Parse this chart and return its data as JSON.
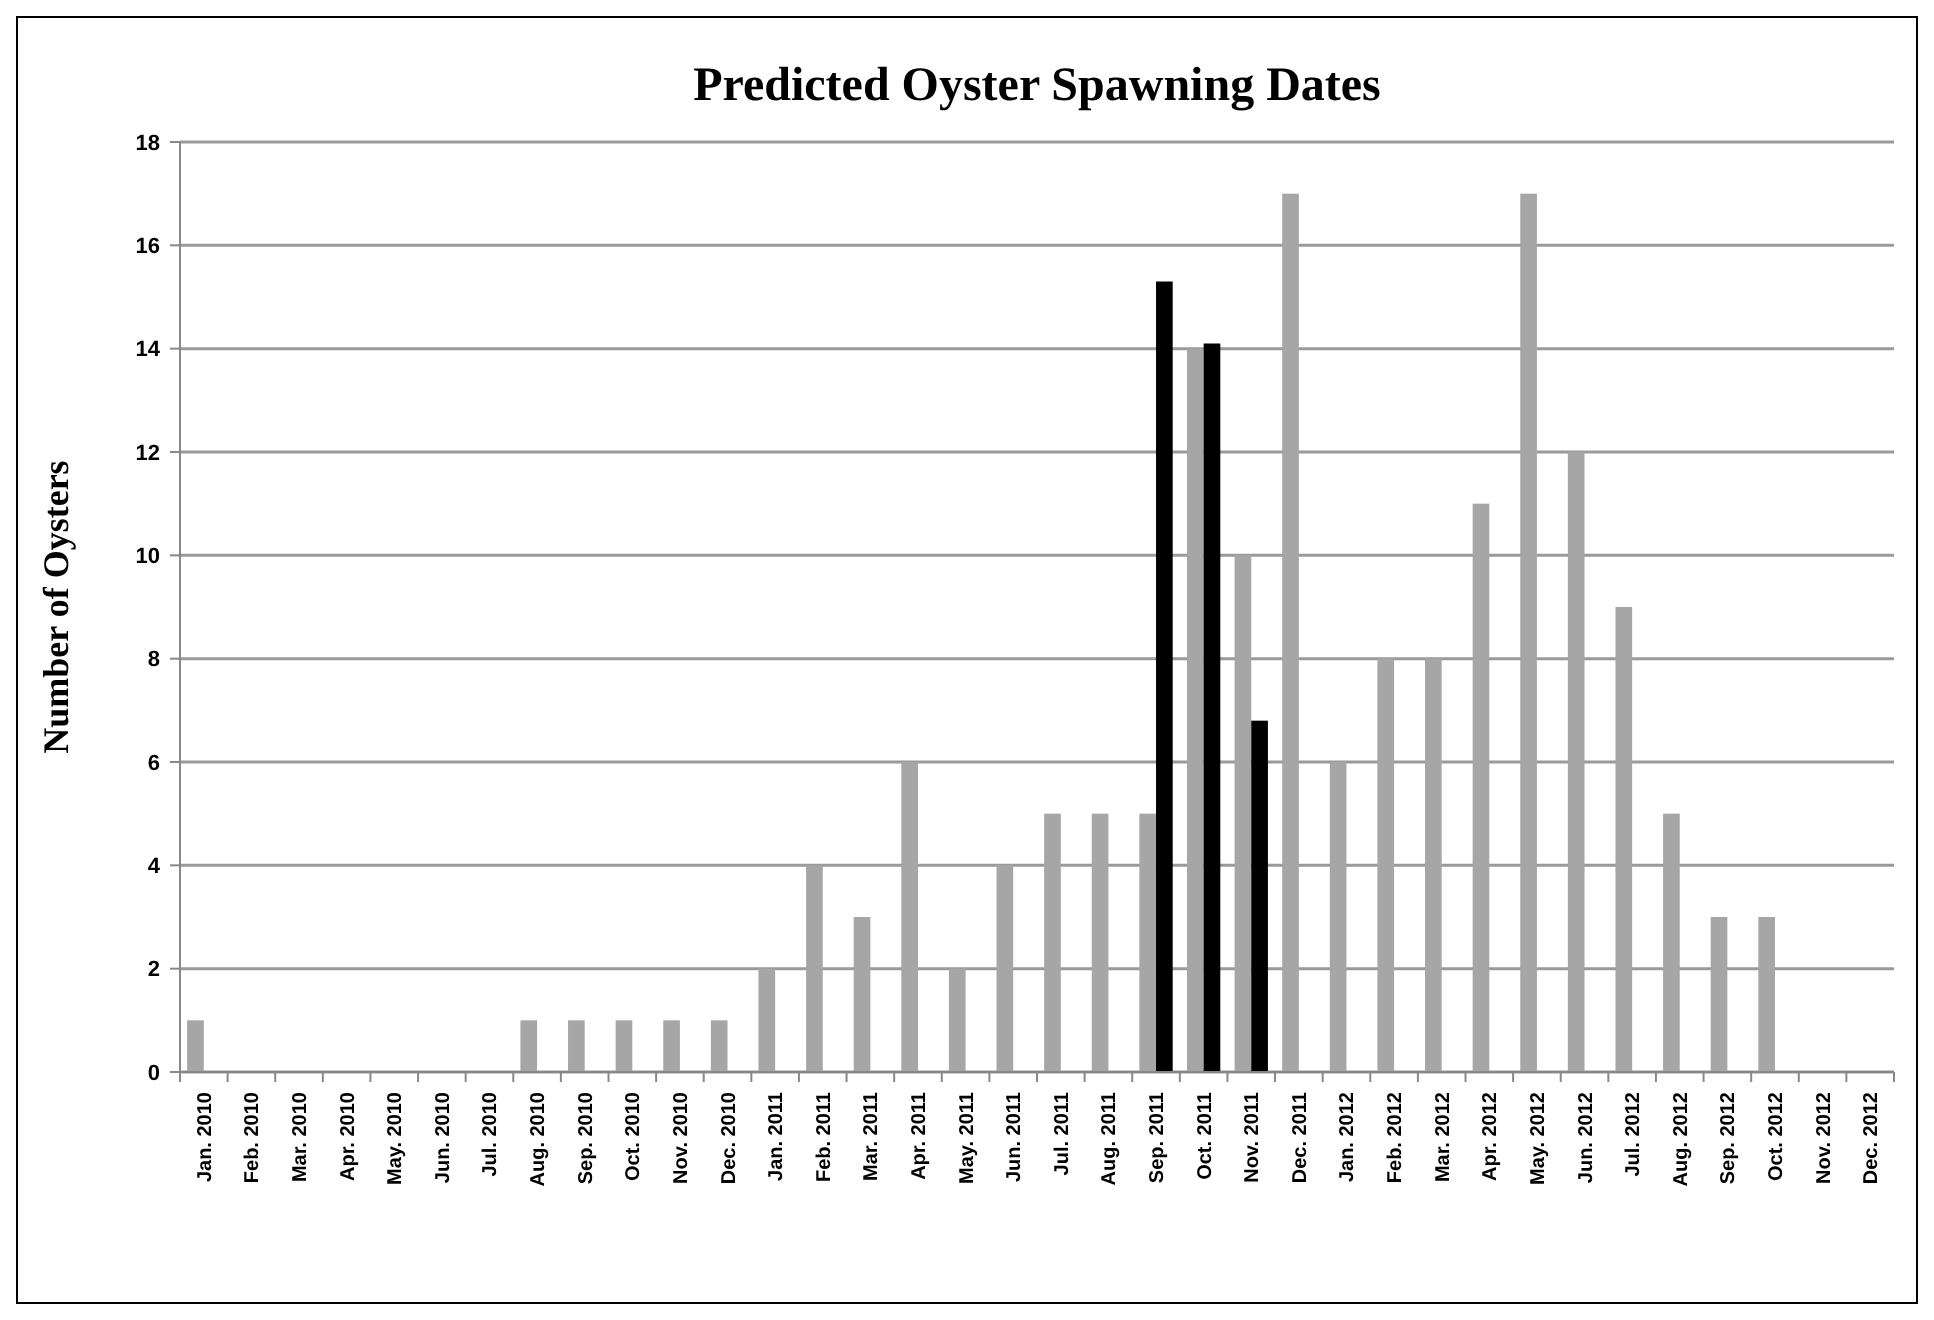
{
  "chart_data": {
    "type": "bar",
    "title": "Predicted Oyster Spawning Dates",
    "ylabel": "Number of Oysters",
    "categories": [
      "Jan. 2010",
      "Feb. 2010",
      "Mar. 2010",
      "Apr. 2010",
      "May. 2010",
      "Jun. 2010",
      "Jul. 2010",
      "Aug. 2010",
      "Sep. 2010",
      "Oct. 2010",
      "Nov. 2010",
      "Dec. 2010",
      "Jan. 2011",
      "Feb. 2011",
      "Mar. 2011",
      "Apr. 2011",
      "May. 2011",
      "Jun. 2011",
      "Jul. 2011",
      "Aug. 2011",
      "Sep. 2011",
      "Oct. 2011",
      "Nov. 2011",
      "Dec. 2011",
      "Jan. 2012",
      "Feb. 2012",
      "Mar. 2012",
      "Apr. 2012",
      "May. 2012",
      "Jun. 2012",
      "Jul. 2012",
      "Aug. 2012",
      "Sep. 2012",
      "Oct. 2012",
      "Nov. 2012",
      "Dec. 2012"
    ],
    "series": [
      {
        "color": "#a6a6a6",
        "values": [
          1,
          0,
          0,
          0,
          0,
          0,
          0,
          1,
          1,
          1,
          1,
          1,
          2,
          4,
          3,
          6,
          2,
          4,
          5,
          5,
          5,
          14,
          10,
          17,
          6,
          8,
          8,
          11,
          17,
          12,
          9,
          5,
          3,
          3,
          0,
          0
        ]
      },
      {
        "color": "#000000",
        "values": [
          null,
          null,
          null,
          null,
          null,
          null,
          null,
          null,
          null,
          null,
          null,
          null,
          null,
          null,
          null,
          null,
          null,
          null,
          null,
          null,
          15.3,
          14.1,
          6.8,
          null,
          null,
          null,
          null,
          null,
          null,
          null,
          null,
          null,
          null,
          null,
          null,
          null
        ]
      }
    ],
    "ylim": [
      0,
      18
    ],
    "yticks": [
      0,
      2,
      4,
      6,
      8,
      10,
      12,
      14,
      16,
      18
    ],
    "grid": "y"
  }
}
